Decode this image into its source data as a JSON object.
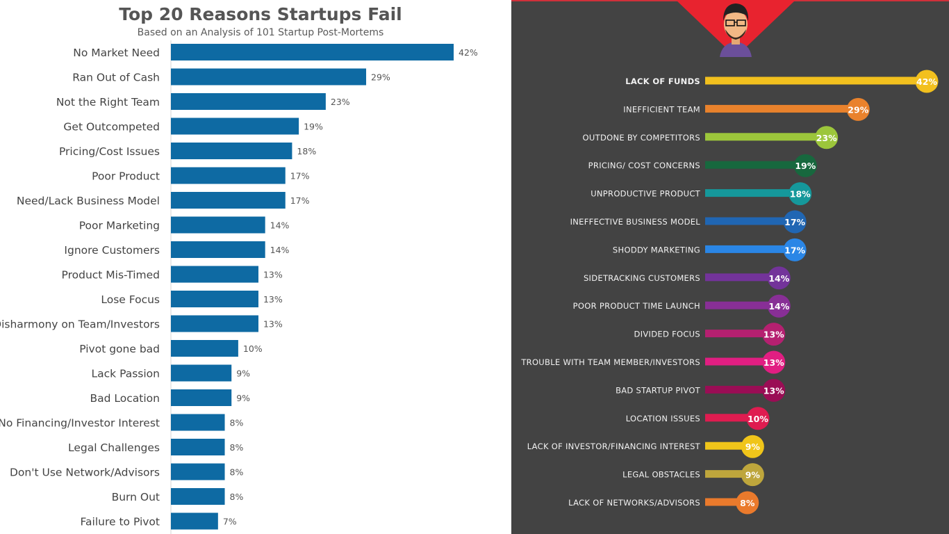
{
  "colors": {
    "left_bar": "#0e6aa3",
    "right_bg": "#434343",
    "triangle": "#e8232f"
  },
  "chart_data": [
    {
      "type": "bar",
      "orientation": "horizontal",
      "title": "Top 20 Reasons Startups Fail",
      "subtitle": "Based on an Analysis of 101 Startup Post-Mortems",
      "xlabel": "",
      "ylabel": "",
      "xlim": [
        0,
        42
      ],
      "grid": false,
      "categories": [
        "No Market Need",
        "Ran Out of Cash",
        "Not the Right Team",
        "Get Outcompeted",
        "Pricing/Cost Issues",
        "Poor Product",
        "Need/Lack Business Model",
        "Poor Marketing",
        "Ignore Customers",
        "Product Mis-Timed",
        "Lose Focus",
        "Disharmony on Team/Investors",
        "Pivot gone bad",
        "Lack Passion",
        "Bad Location",
        "No Financing/Investor Interest",
        "Legal Challenges",
        "Don't Use Network/Advisors",
        "Burn Out",
        "Failure to Pivot"
      ],
      "values": [
        42,
        29,
        23,
        19,
        18,
        17,
        17,
        14,
        14,
        13,
        13,
        13,
        10,
        9,
        9,
        8,
        8,
        8,
        8,
        7
      ],
      "value_labels": [
        "42%",
        "29%",
        "23%",
        "19%",
        "18%",
        "17%",
        "17%",
        "14%",
        "14%",
        "13%",
        "13%",
        "13%",
        "10%",
        "9%",
        "9%",
        "8%",
        "8%",
        "8%",
        "8%",
        "7%"
      ]
    },
    {
      "type": "bar",
      "orientation": "horizontal",
      "title": "",
      "xlim": [
        0,
        42
      ],
      "grid": false,
      "categories": [
        "LACK OF FUNDS",
        "INEFFICIENT TEAM",
        "OUTDONE BY COMPETITORS",
        "PRICING/ COST CONCERNS",
        "UNPRODUCTIVE PRODUCT",
        "INEFFECTIVE BUSINESS MODEL",
        "SHODDY MARKETING",
        "SIDETRACKING CUSTOMERS",
        "POOR PRODUCT TIME LAUNCH",
        "DIVIDED FOCUS",
        "TROUBLE WITH TEAM MEMBER/INVESTORS",
        "BAD STARTUP PIVOT",
        "LOCATION ISSUES",
        "LACK OF INVESTOR/FINANCING INTEREST",
        "LEGAL OBSTACLES",
        "LACK OF NETWORKS/ADVISORS"
      ],
      "values": [
        42,
        29,
        23,
        19,
        18,
        17,
        17,
        14,
        14,
        13,
        13,
        13,
        10,
        9,
        9,
        8
      ],
      "value_labels": [
        "42%",
        "29%",
        "23%",
        "19%",
        "18%",
        "17%",
        "17%",
        "14%",
        "14%",
        "13%",
        "13%",
        "13%",
        "10%",
        "9%",
        "9%",
        "8%"
      ],
      "colors": [
        "#f2c01e",
        "#e9822c",
        "#9cc63b",
        "#17683e",
        "#15989b",
        "#2066b3",
        "#2a86e6",
        "#73339a",
        "#882f96",
        "#b52070",
        "#e11e82",
        "#9a0d55",
        "#df1c50",
        "#f0c51a",
        "#bea63c",
        "#ea7a2c"
      ]
    }
  ]
}
